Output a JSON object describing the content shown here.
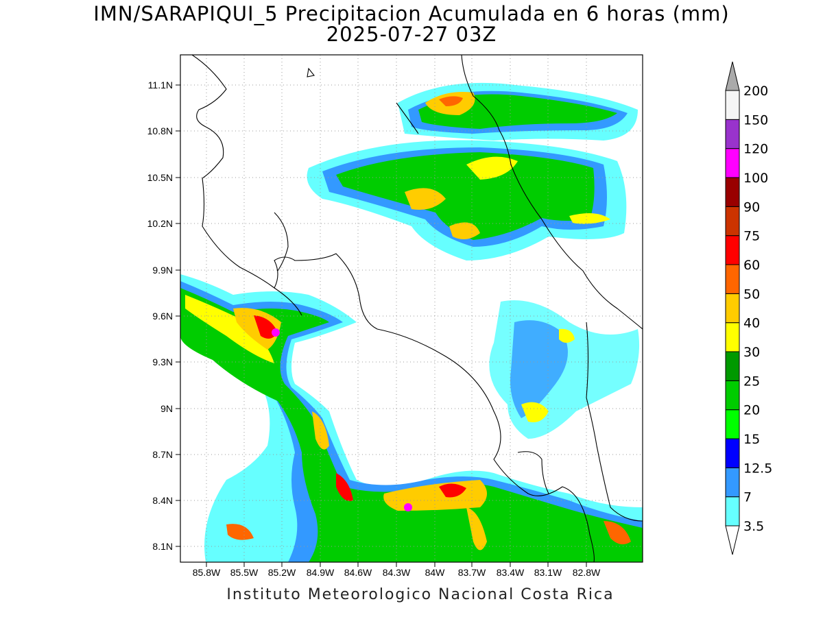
{
  "title_line1": "IMN/SARAPIQUI_5 Precipitacion Acumulada en 6 horas (mm)",
  "title_line2": "2025-07-27 03Z",
  "footer": "Instituto Meteorologico Nacional Costa Rica",
  "map": {
    "lat_labels": [
      "11.1N",
      "10.8N",
      "10.5N",
      "10.2N",
      "9.9N",
      "9.6N",
      "9.3N",
      "9N",
      "8.7N",
      "8.4N",
      "8.1N"
    ],
    "lon_labels": [
      "85.8W",
      "85.5W",
      "85.2W",
      "84.9W",
      "84.6W",
      "84.3W",
      "84W",
      "83.7W",
      "83.4W",
      "83.1W",
      "82.8W"
    ]
  },
  "colorbar": {
    "levels": [
      {
        "label": "3.5",
        "color": "#66ffff"
      },
      {
        "label": "7",
        "color": "#3399ff"
      },
      {
        "label": "12.5",
        "color": "#0000ff"
      },
      {
        "label": "15",
        "color": "#00ff00"
      },
      {
        "label": "20",
        "color": "#00cc00"
      },
      {
        "label": "25",
        "color": "#009900"
      },
      {
        "label": "30",
        "color": "#ffff00"
      },
      {
        "label": "40",
        "color": "#ffcc00"
      },
      {
        "label": "50",
        "color": "#ff6600"
      },
      {
        "label": "60",
        "color": "#ff0000"
      },
      {
        "label": "75",
        "color": "#cc3300"
      },
      {
        "label": "90",
        "color": "#990000"
      },
      {
        "label": "100",
        "color": "#ff00ff"
      },
      {
        "label": "120",
        "color": "#9933cc"
      },
      {
        "label": "150",
        "color": "#f5f5f5"
      },
      {
        "label": "200",
        "color": "#aaaaaa"
      }
    ]
  }
}
